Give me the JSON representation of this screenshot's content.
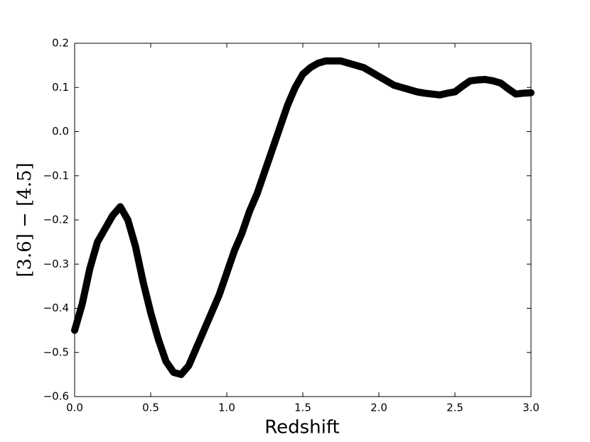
{
  "chart_data": {
    "type": "line",
    "xlabel": "Redshift",
    "ylabel": "[3.6] − [4.5]",
    "x": [
      0.0,
      0.05,
      0.1,
      0.15,
      0.2,
      0.25,
      0.3,
      0.35,
      0.4,
      0.45,
      0.5,
      0.55,
      0.6,
      0.65,
      0.7,
      0.75,
      0.8,
      0.85,
      0.9,
      0.95,
      1.0,
      1.05,
      1.1,
      1.15,
      1.2,
      1.25,
      1.3,
      1.35,
      1.4,
      1.45,
      1.5,
      1.55,
      1.6,
      1.65,
      1.7,
      1.75,
      1.8,
      1.85,
      1.9,
      1.95,
      2.0,
      2.05,
      2.1,
      2.15,
      2.2,
      2.25,
      2.3,
      2.35,
      2.4,
      2.45,
      2.5,
      2.55,
      2.6,
      2.65,
      2.7,
      2.75,
      2.8,
      2.85,
      2.9,
      2.95,
      3.0
    ],
    "series": [
      {
        "color": "#000000",
        "values": [
          -0.45,
          -0.39,
          -0.31,
          -0.25,
          -0.22,
          -0.19,
          -0.17,
          -0.2,
          -0.26,
          -0.34,
          -0.41,
          -0.47,
          -0.52,
          -0.545,
          -0.55,
          -0.53,
          -0.49,
          -0.45,
          -0.41,
          -0.37,
          -0.32,
          -0.27,
          -0.23,
          -0.18,
          -0.14,
          -0.09,
          -0.04,
          0.01,
          0.06,
          0.1,
          0.13,
          0.145,
          0.155,
          0.16,
          0.16,
          0.16,
          0.155,
          0.15,
          0.145,
          0.135,
          0.125,
          0.115,
          0.105,
          0.1,
          0.095,
          0.09,
          0.087,
          0.085,
          0.083,
          0.087,
          0.09,
          0.103,
          0.115,
          0.117,
          0.118,
          0.115,
          0.11,
          0.097,
          0.085,
          0.087,
          0.088
        ]
      }
    ],
    "xlim": [
      0,
      3
    ],
    "ylim": [
      -0.6,
      0.2
    ],
    "xticks": [
      {
        "value": 0,
        "label": "0.0"
      },
      0.5,
      {
        "value": 1,
        "label": "1.0"
      },
      1.5,
      {
        "value": 2,
        "label": "2.0"
      },
      2.5,
      {
        "value": 3,
        "label": "3.0"
      }
    ],
    "yticks": [
      {
        "value": -0.6,
        "label": "−0.6"
      },
      {
        "value": -0.5,
        "label": "−0.5"
      },
      {
        "value": -0.4,
        "label": "−0.4"
      },
      {
        "value": -0.3,
        "label": "−0.3"
      },
      {
        "value": -0.2,
        "label": "−0.2"
      },
      {
        "value": -0.1,
        "label": "−0.1"
      },
      {
        "value": 0,
        "label": "0.0"
      },
      0.1,
      0.2
    ]
  }
}
